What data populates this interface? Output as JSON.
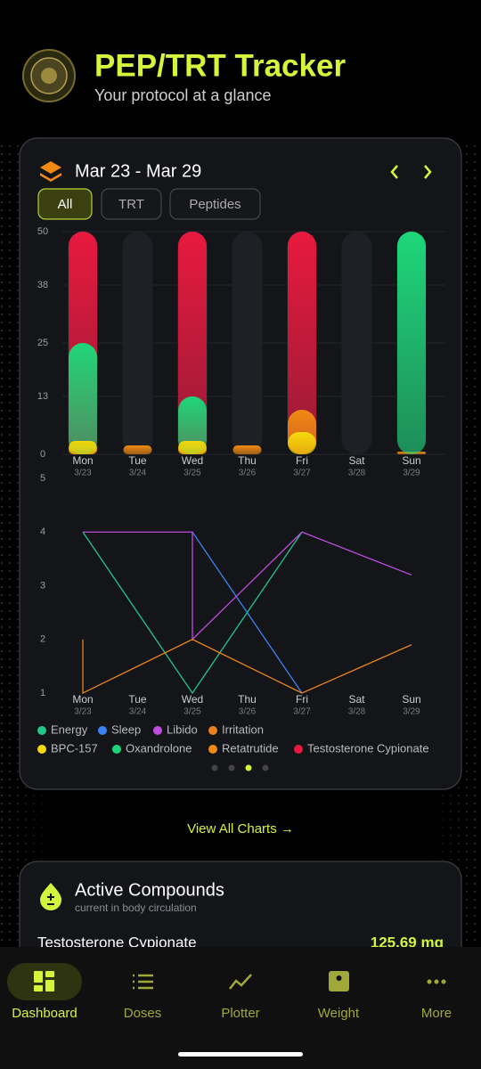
{
  "header": {
    "title": "PEP/TRT Tracker",
    "subtitle": "Your protocol at a glance"
  },
  "week": {
    "range": "Mar 23 - Mar 29",
    "filters": [
      "All",
      "TRT",
      "Peptides"
    ]
  },
  "chart_data": [
    {
      "type": "bar",
      "categories": [
        "Mon",
        "Tue",
        "Wed",
        "Thu",
        "Fri",
        "Sat",
        "Sun"
      ],
      "dates": [
        "3/23",
        "3/24",
        "3/25",
        "3/26",
        "3/27",
        "3/28",
        "3/29"
      ],
      "ylim": [
        0,
        50
      ],
      "yticks": [
        0,
        13,
        25,
        38,
        50
      ],
      "grid": true,
      "series": [
        {
          "name": "BPC-157",
          "color": "#f5d90a",
          "values": [
            3,
            null,
            3,
            null,
            5,
            null,
            null
          ]
        },
        {
          "name": "Oxandrolone",
          "color": "#1ed67a",
          "values": [
            25,
            null,
            13,
            null,
            null,
            null,
            50
          ]
        },
        {
          "name": "Retatrutide",
          "color": "#f08a12",
          "values": [
            2,
            2,
            2,
            2,
            10,
            null,
            0.5
          ]
        },
        {
          "name": "Testosterone Cypionate",
          "color": "#e8193f",
          "values": [
            50,
            null,
            50,
            null,
            50,
            null,
            null
          ]
        }
      ]
    },
    {
      "type": "line",
      "categories": [
        "Mon",
        "Tue",
        "Wed",
        "Thu",
        "Fri",
        "Sat",
        "Sun"
      ],
      "dates": [
        "3/23",
        "3/24",
        "3/25",
        "3/26",
        "3/27",
        "3/28",
        "3/29"
      ],
      "ylim": [
        1,
        5
      ],
      "yticks": [
        1,
        2,
        3,
        4,
        5
      ],
      "series": [
        {
          "name": "Energy",
          "color": "#22c58a",
          "x": [
            "Mon",
            "Wed",
            "Fri"
          ],
          "values": [
            4,
            1,
            4
          ]
        },
        {
          "name": "Sleep",
          "color": "#3b82f6",
          "x": [
            "Wed",
            "Fri"
          ],
          "values": [
            4,
            1
          ]
        },
        {
          "name": "Libido",
          "color": "#c04be0",
          "x": [
            "Mon",
            "Wed",
            "Wed",
            "Fri",
            "Sun"
          ],
          "values": [
            4,
            4,
            2,
            4,
            3.2
          ]
        },
        {
          "name": "Irritation",
          "color": "#e8821e",
          "x": [
            "Mon",
            "Mon",
            "Wed",
            "Fri",
            "Sun"
          ],
          "values": [
            2,
            1,
            2,
            1,
            1.9
          ]
        }
      ]
    }
  ],
  "link": "View All Charts →",
  "active": {
    "title": "Active Compounds",
    "subtitle": "current in body circulation",
    "rows": [
      {
        "name": "Testosterone Cypionate",
        "amount": "125.69 mg"
      }
    ]
  },
  "nav": [
    "Dashboard",
    "Doses",
    "Plotter",
    "Weight",
    "More"
  ]
}
